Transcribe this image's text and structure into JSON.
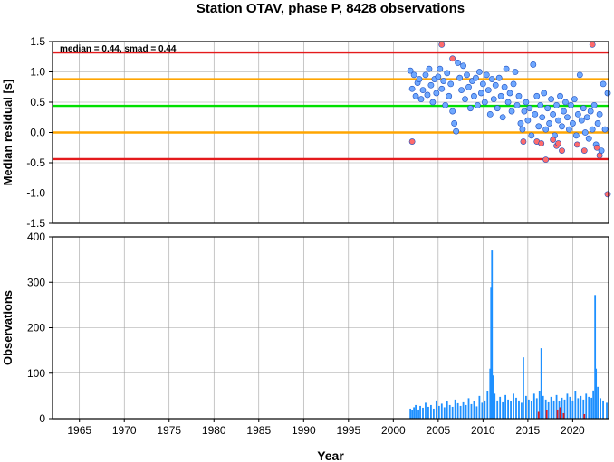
{
  "chart_data": {
    "title": "Station OTAV, phase P, 8428 observations",
    "xlabel": "Year",
    "xlim": [
      1962,
      2024
    ],
    "x_ticks": [
      "1965",
      "1970",
      "1975",
      "1980",
      "1985",
      "1990",
      "1995",
      "2000",
      "2005",
      "2010",
      "2015",
      "2020"
    ],
    "panels": [
      {
        "type": "scatter",
        "ylabel": "Median residual [s]",
        "ylim": [
          -1.5,
          1.5
        ],
        "y_ticks": [
          "-1.5",
          "-1.0",
          "-0.5",
          "0.0",
          "0.5",
          "1.0",
          "1.5"
        ],
        "annotation": "median = 0.44, smad = 0.44",
        "reference_lines": [
          {
            "value": 1.32,
            "color": "#e41a1c"
          },
          {
            "value": 0.88,
            "color": "#ffa500"
          },
          {
            "value": 0.44,
            "color": "#00e000"
          },
          {
            "value": 0.0,
            "color": "#ffa500"
          },
          {
            "value": -0.44,
            "color": "#e41a1c"
          }
        ],
        "series": [
          {
            "color": "#6fa8ff",
            "points": [
              [
                2001.9,
                1.02
              ],
              [
                2002.1,
                0.72
              ],
              [
                2002.3,
                0.95
              ],
              [
                2002.5,
                0.6
              ],
              [
                2002.7,
                0.82
              ],
              [
                2002.9,
                0.88
              ],
              [
                2003.1,
                0.55
              ],
              [
                2003.3,
                0.7
              ],
              [
                2003.6,
                0.95
              ],
              [
                2003.8,
                0.62
              ],
              [
                2004.0,
                1.05
              ],
              [
                2004.2,
                0.78
              ],
              [
                2004.4,
                0.5
              ],
              [
                2004.6,
                0.88
              ],
              [
                2004.8,
                0.65
              ],
              [
                2005.0,
                0.92
              ],
              [
                2005.2,
                1.05
              ],
              [
                2005.4,
                0.72
              ],
              [
                2005.6,
                0.85
              ],
              [
                2005.8,
                0.45
              ],
              [
                2006.0,
                0.98
              ],
              [
                2006.2,
                0.6
              ],
              [
                2006.4,
                0.8
              ],
              [
                2006.6,
                0.35
              ],
              [
                2006.8,
                0.15
              ],
              [
                2007.0,
                0.02
              ],
              [
                2007.2,
                1.15
              ],
              [
                2007.4,
                0.9
              ],
              [
                2007.6,
                0.7
              ],
              [
                2007.8,
                1.1
              ],
              [
                2008.0,
                0.55
              ],
              [
                2008.2,
                0.95
              ],
              [
                2008.4,
                0.75
              ],
              [
                2008.6,
                0.4
              ],
              [
                2008.8,
                0.85
              ],
              [
                2009.0,
                0.6
              ],
              [
                2009.2,
                0.9
              ],
              [
                2009.4,
                0.45
              ],
              [
                2009.6,
                1.0
              ],
              [
                2009.8,
                0.65
              ],
              [
                2010.0,
                0.8
              ],
              [
                2010.2,
                0.5
              ],
              [
                2010.4,
                0.95
              ],
              [
                2010.6,
                0.7
              ],
              [
                2010.8,
                0.3
              ],
              [
                2011.0,
                0.88
              ],
              [
                2011.2,
                0.55
              ],
              [
                2011.4,
                0.78
              ],
              [
                2011.6,
                0.4
              ],
              [
                2011.8,
                0.9
              ],
              [
                2012.0,
                0.6
              ],
              [
                2012.2,
                0.25
              ],
              [
                2012.4,
                0.75
              ],
              [
                2012.6,
                1.05
              ],
              [
                2012.8,
                0.5
              ],
              [
                2013.0,
                0.65
              ],
              [
                2013.2,
                0.35
              ],
              [
                2013.4,
                0.8
              ],
              [
                2013.6,
                1.0
              ],
              [
                2013.8,
                0.45
              ],
              [
                2014.0,
                0.6
              ],
              [
                2014.2,
                0.15
              ],
              [
                2014.4,
                0.05
              ],
              [
                2014.6,
                0.35
              ],
              [
                2014.8,
                0.5
              ],
              [
                2015.0,
                0.2
              ],
              [
                2015.2,
                0.4
              ],
              [
                2015.4,
                -0.05
              ],
              [
                2015.6,
                1.12
              ],
              [
                2015.8,
                0.3
              ],
              [
                2016.0,
                0.6
              ],
              [
                2016.2,
                0.1
              ],
              [
                2016.4,
                0.45
              ],
              [
                2016.6,
                0.25
              ],
              [
                2016.8,
                0.65
              ],
              [
                2017.0,
                0.05
              ],
              [
                2017.2,
                0.4
              ],
              [
                2017.4,
                0.15
              ],
              [
                2017.6,
                0.55
              ],
              [
                2017.8,
                0.3
              ],
              [
                2018.0,
                -0.05
              ],
              [
                2018.2,
                0.45
              ],
              [
                2018.4,
                0.2
              ],
              [
                2018.6,
                0.6
              ],
              [
                2018.8,
                0.1
              ],
              [
                2019.0,
                0.35
              ],
              [
                2019.2,
                0.5
              ],
              [
                2019.4,
                0.25
              ],
              [
                2019.6,
                0.05
              ],
              [
                2019.8,
                0.45
              ],
              [
                2020.0,
                0.15
              ],
              [
                2020.2,
                0.55
              ],
              [
                2020.4,
                -0.05
              ],
              [
                2020.6,
                0.3
              ],
              [
                2020.8,
                0.95
              ],
              [
                2021.0,
                0.2
              ],
              [
                2021.2,
                0.4
              ],
              [
                2021.4,
                0.0
              ],
              [
                2021.6,
                0.25
              ],
              [
                2021.8,
                -0.1
              ],
              [
                2022.0,
                0.35
              ],
              [
                2022.2,
                0.05
              ],
              [
                2022.4,
                0.45
              ],
              [
                2022.6,
                -0.2
              ],
              [
                2022.8,
                0.15
              ],
              [
                2023.0,
                0.3
              ],
              [
                2023.2,
                -0.3
              ],
              [
                2023.4,
                0.8
              ],
              [
                2023.6,
                0.05
              ],
              [
                2023.9,
                0.65
              ]
            ]
          },
          {
            "color": "#ff6b6b",
            "points": [
              [
                2002.1,
                -0.15
              ],
              [
                2005.4,
                1.45
              ],
              [
                2006.6,
                1.22
              ],
              [
                2014.5,
                -0.15
              ],
              [
                2016.0,
                -0.15
              ],
              [
                2016.5,
                -0.18
              ],
              [
                2017.0,
                -0.45
              ],
              [
                2017.8,
                -0.12
              ],
              [
                2018.2,
                -0.22
              ],
              [
                2018.4,
                -0.18
              ],
              [
                2018.8,
                -0.3
              ],
              [
                2020.5,
                -0.2
              ],
              [
                2021.3,
                -0.3
              ],
              [
                2022.2,
                1.45
              ],
              [
                2022.7,
                -0.25
              ],
              [
                2023.0,
                -0.38
              ],
              [
                2023.9,
                -1.02
              ]
            ]
          }
        ]
      },
      {
        "type": "bar",
        "ylabel": "Observations",
        "ylim": [
          0,
          400
        ],
        "y_ticks": [
          "0",
          "100",
          "200",
          "300",
          "400"
        ],
        "series": [
          {
            "color": "#1e90ff",
            "x": [
              2001.9,
              2002.1,
              2002.3,
              2002.5,
              2002.8,
              2003.0,
              2003.3,
              2003.6,
              2003.9,
              2004.2,
              2004.5,
              2004.8,
              2005.1,
              2005.4,
              2005.7,
              2006.0,
              2006.3,
              2006.6,
              2006.9,
              2007.2,
              2007.5,
              2007.8,
              2008.1,
              2008.4,
              2008.7,
              2009.0,
              2009.3,
              2009.6,
              2009.9,
              2010.2,
              2010.5,
              2010.8,
              2010.9,
              2011.0,
              2011.1,
              2011.3,
              2011.6,
              2011.9,
              2012.2,
              2012.5,
              2012.8,
              2013.1,
              2013.4,
              2013.7,
              2014.0,
              2014.3,
              2014.5,
              2014.8,
              2015.1,
              2015.4,
              2015.7,
              2016.0,
              2016.3,
              2016.5,
              2016.7,
              2017.0,
              2017.3,
              2017.6,
              2017.9,
              2018.2,
              2018.5,
              2018.8,
              2019.1,
              2019.4,
              2019.7,
              2020.0,
              2020.3,
              2020.6,
              2020.9,
              2021.2,
              2021.5,
              2021.8,
              2022.1,
              2022.3,
              2022.5,
              2022.6,
              2022.8,
              2023.1,
              2023.4,
              2023.8
            ],
            "values": [
              22,
              18,
              25,
              30,
              20,
              28,
              24,
              35,
              26,
              30,
              22,
              40,
              28,
              33,
              25,
              38,
              30,
              26,
              42,
              34,
              28,
              36,
              30,
              45,
              32,
              38,
              27,
              50,
              35,
              40,
              60,
              110,
              290,
              370,
              95,
              55,
              40,
              48,
              36,
              52,
              42,
              38,
              55,
              46,
              40,
              35,
              135,
              50,
              42,
              38,
              55,
              45,
              60,
              155,
              50,
              42,
              36,
              48,
              40,
              52,
              38,
              46,
              42,
              55,
              48,
              40,
              60,
              45,
              50,
              42,
              55,
              48,
              46,
              62,
              272,
              110,
              70,
              45,
              40,
              35
            ]
          },
          {
            "color": "#e41a1c",
            "x": [
              2016.2,
              2017.1,
              2018.3,
              2018.6,
              2019.0,
              2021.3
            ],
            "values": [
              15,
              18,
              20,
              25,
              12,
              10
            ]
          }
        ]
      }
    ]
  }
}
